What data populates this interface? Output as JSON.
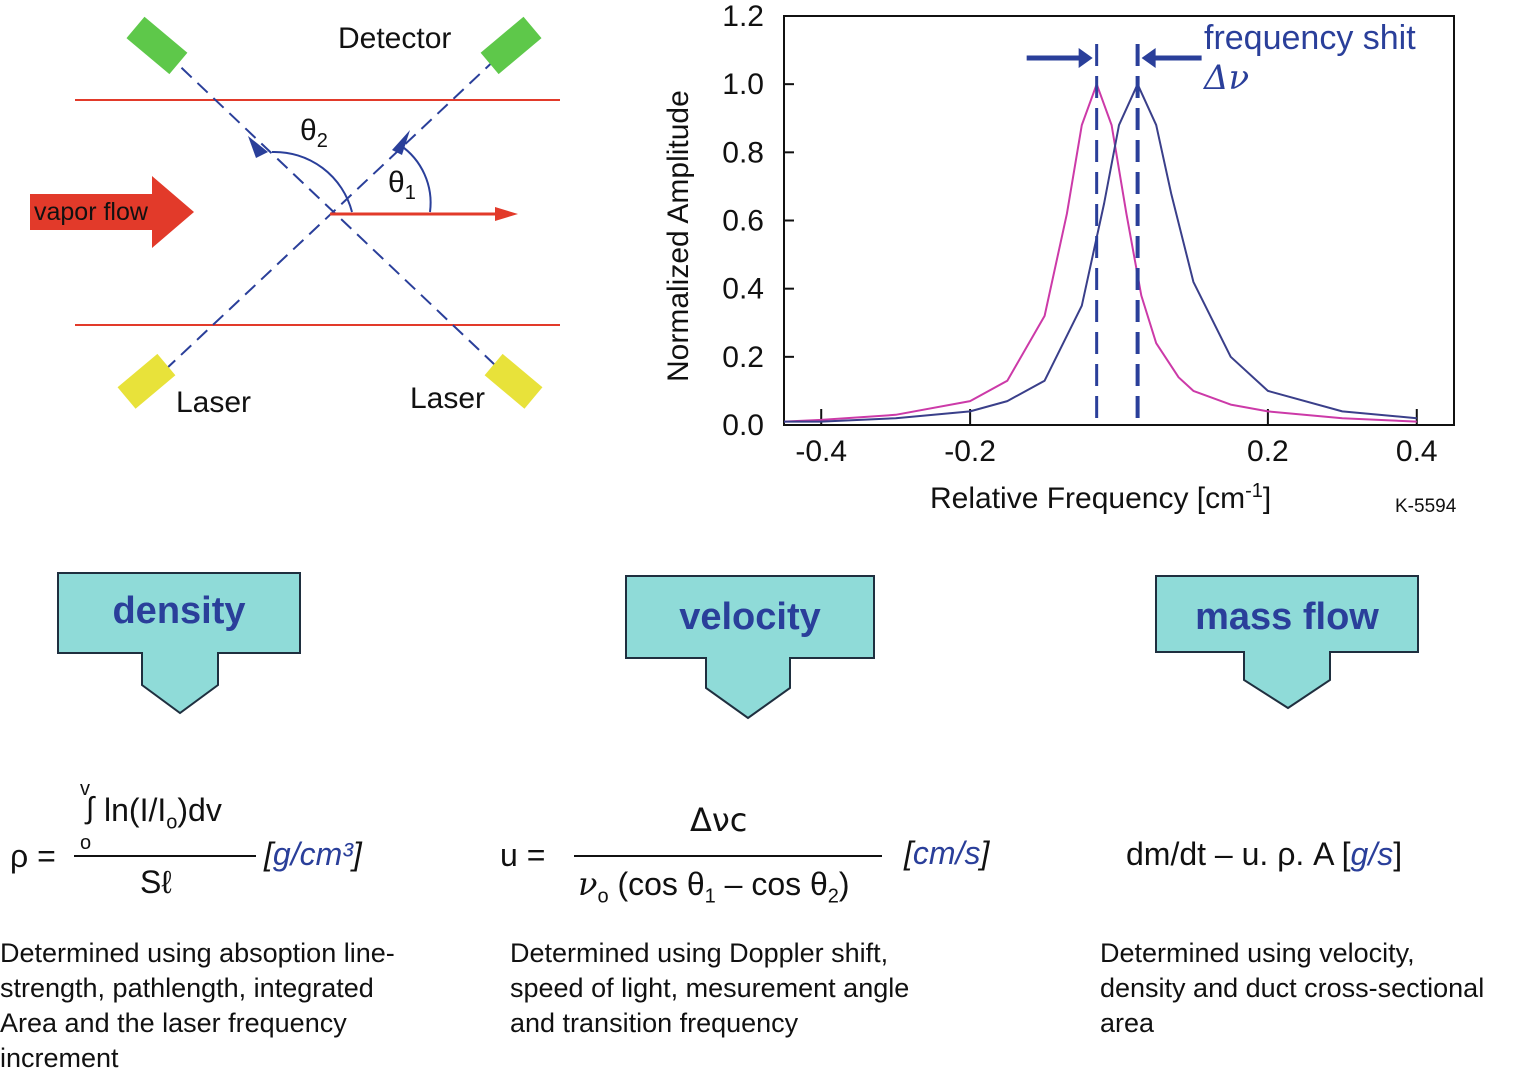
{
  "diagram": {
    "detector_label": "Detector",
    "laser_left_label": "Laser",
    "laser_right_label": "Laser",
    "vapor_flow_label": "vapor flow",
    "theta2_label": "θ",
    "theta2_sub": "2",
    "theta1_label": "θ",
    "theta1_sub": "1",
    "colors": {
      "flow": "#e23a2a",
      "beam": "#2a3f9a",
      "detector": "#5ec84a",
      "laser": "#e8e23a"
    }
  },
  "chart_data": {
    "type": "line",
    "title": "",
    "xlabel": "Relative Frequency [cm",
    "xlabel_sup": "-1",
    "xlabel_end": "]",
    "ylabel": "Normalized Amplitude",
    "xlim": [
      -0.45,
      0.45
    ],
    "ylim": [
      0,
      1.2
    ],
    "x_ticks": [
      "-0.4",
      "-0.2",
      "0.2",
      "0.4"
    ],
    "y_ticks": [
      "0.0",
      "0.2",
      "0.4",
      "0.6",
      "0.8",
      "1.0",
      "1.2"
    ],
    "series": [
      {
        "color": "#cc3aa8",
        "center": -0.03,
        "width": 0.045,
        "x": [
          -0.45,
          -0.4,
          -0.3,
          -0.2,
          -0.15,
          -0.1,
          -0.07,
          -0.05,
          -0.03,
          -0.01,
          0.01,
          0.03,
          0.05,
          0.08,
          0.1,
          0.15,
          0.2,
          0.3,
          0.4
        ],
        "y": [
          0.01,
          0.015,
          0.03,
          0.07,
          0.13,
          0.32,
          0.62,
          0.88,
          1.0,
          0.88,
          0.62,
          0.38,
          0.24,
          0.14,
          0.1,
          0.06,
          0.04,
          0.02,
          0.01
        ]
      },
      {
        "color": "#3a3f8a",
        "center": 0.025,
        "width": 0.045,
        "x": [
          -0.45,
          -0.4,
          -0.3,
          -0.2,
          -0.15,
          -0.1,
          -0.05,
          -0.02,
          0.0,
          0.025,
          0.05,
          0.07,
          0.1,
          0.15,
          0.2,
          0.3,
          0.4
        ],
        "y": [
          0.01,
          0.01,
          0.02,
          0.04,
          0.07,
          0.13,
          0.35,
          0.65,
          0.88,
          1.0,
          0.88,
          0.68,
          0.42,
          0.2,
          0.1,
          0.04,
          0.02
        ]
      }
    ],
    "shift_lines_x": [
      -0.03,
      0.025
    ],
    "annotation": "frequency shit",
    "annotation_symbol": "Δν",
    "code": "K-5594"
  },
  "boxes": {
    "density": "density",
    "velocity": "velocity",
    "massflow": "mass flow",
    "color": "#8fdbd8"
  },
  "formulas": {
    "density": {
      "lhs": "ρ =",
      "upper_limit": "v",
      "lower_limit": "o",
      "integrand_a": "ln(I/I",
      "integrand_sub": "o",
      "integrand_b": ")dv",
      "denominator": "Sℓ",
      "unit": "g/cm³"
    },
    "velocity": {
      "lhs": "u =",
      "numerator": "Δνc",
      "denom_a": "ν",
      "denom_a_sub": "o",
      "denom_b": " (cos θ",
      "denom_b_sub": "1",
      "denom_c": " – cos θ",
      "denom_c_sub": "2",
      "denom_d": ")",
      "unit": "cm/s"
    },
    "massflow": {
      "text": "dm/dt – u. ρ. A [",
      "unit": "g/s",
      "close": "]"
    }
  },
  "descriptions": {
    "density": [
      "Determined using absoption line-",
      "strength, pathlength, integrated",
      "Area and the laser frequency",
      "increment"
    ],
    "velocity": [
      "Determined using Doppler shift,",
      "speed of light, mesurement angle",
      "and transition frequency"
    ],
    "massflow": [
      "Determined using velocity,",
      "density and duct cross-sectional",
      "area"
    ]
  }
}
